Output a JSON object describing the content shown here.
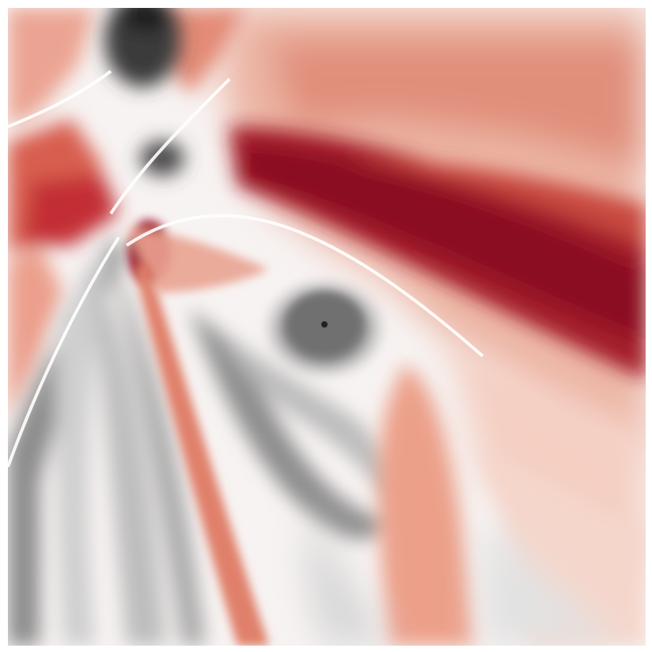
{
  "image": {
    "kind": "diverging-colormap-field",
    "colormap": {
      "negative_max": "#0a0a0a",
      "negative_mid": "#7a7a7a",
      "neutral": "#ffffff",
      "positive_mid": "#e07a62",
      "positive_max": "#8a0d24"
    },
    "features": [
      "dark-red-band-upper-right",
      "gray-vortex-center",
      "dark-gray-patch-top",
      "gray-arcs-lower-left",
      "light-red-streak-lower-center"
    ]
  }
}
